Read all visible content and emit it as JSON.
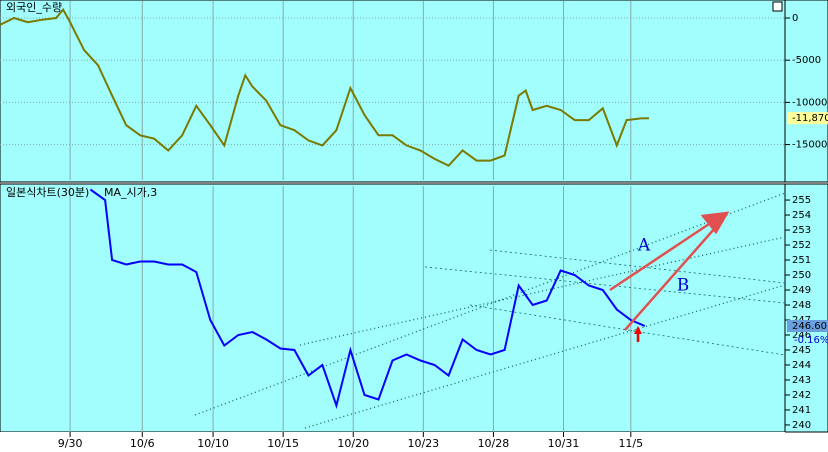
{
  "chart_data": [
    {
      "type": "line",
      "title": "외국인_수량",
      "color": "#7a7a00",
      "x": [
        0,
        2,
        4,
        6,
        8,
        9,
        10,
        12,
        14,
        15,
        16,
        18,
        20,
        22,
        24,
        26,
        28,
        30,
        32,
        34,
        35,
        36,
        38,
        40,
        42,
        44,
        46,
        48,
        50,
        52,
        54,
        56,
        58,
        60,
        62,
        64,
        66,
        68,
        70,
        72,
        74,
        75,
        76,
        78,
        80,
        82,
        84,
        86,
        88,
        89.4,
        91.4,
        92.6
      ],
      "values": [
        -800,
        0,
        -500,
        -200,
        0,
        1000,
        -500,
        -3800,
        -5600,
        -7400,
        -9200,
        -12700,
        -13900,
        -14300,
        -15700,
        -13900,
        -10400,
        -12700,
        -15100,
        -9200,
        -6800,
        -8100,
        -9800,
        -12700,
        -13300,
        -14500,
        -15100,
        -13300,
        -8300,
        -11500,
        -13900,
        -13900,
        -15100,
        -15700,
        -16700,
        -17500,
        -15700,
        -16900,
        -16900,
        -16300,
        -9200,
        -8600,
        -10900,
        -10400,
        -10900,
        -12100,
        -12100,
        -10700,
        -15100,
        -12100,
        -11900,
        -11870
      ],
      "ylim": [
        -19200,
        1900
      ],
      "yticks": [
        0,
        -5000,
        -10000,
        -15000
      ],
      "grid": true,
      "last_label": {
        "value": -11870,
        "label": "-11,870"
      }
    },
    {
      "type": "line",
      "title": "일본식차트(30분)",
      "legend": "MA_시가,3",
      "color": "#0000ff",
      "x": [
        12.9,
        15,
        16,
        18,
        20,
        22,
        24,
        26,
        28,
        30,
        32,
        34,
        36,
        38,
        40,
        42,
        44,
        46,
        48,
        50,
        52,
        54,
        56,
        58,
        60,
        62,
        64,
        66,
        68,
        70,
        72,
        74,
        76,
        78,
        80,
        82,
        84,
        86,
        88,
        90,
        92
      ],
      "values": [
        255.7,
        255,
        251,
        250.7,
        250.9,
        250.9,
        250.7,
        250.7,
        250.2,
        247,
        245.3,
        246,
        246.2,
        245.7,
        245.1,
        245,
        243.3,
        244,
        241.3,
        245,
        242,
        241.7,
        244.3,
        244.7,
        244.3,
        244,
        243.3,
        245.7,
        245,
        244.7,
        245,
        249.3,
        248,
        248.3,
        250.3,
        250,
        249.3,
        249,
        247.7,
        247,
        246.6
      ],
      "ylim": [
        239.53,
        255.87
      ],
      "yticks": [
        240,
        241,
        242,
        243,
        244,
        245,
        246,
        247,
        248,
        249,
        250,
        251,
        252,
        253,
        254,
        255
      ],
      "xlim": [
        0,
        112
      ],
      "xticks": [
        {
          "value": 10,
          "label": "9/30"
        },
        {
          "value": 20.3,
          "label": "10/6"
        },
        {
          "value": 30.4,
          "label": "10/10"
        },
        {
          "value": 40.4,
          "label": "10/15"
        },
        {
          "value": 50.4,
          "label": "10/20"
        },
        {
          "value": 60.4,
          "label": "10/23"
        },
        {
          "value": 70.4,
          "label": "10/28"
        },
        {
          "value": 80.4,
          "label": "10/31"
        },
        {
          "value": 90,
          "label": "11/5"
        }
      ],
      "last_label": {
        "value": 246.6,
        "label": "246.60"
      },
      "change_label": "-0.16%",
      "annotations": [
        "A",
        "B"
      ]
    }
  ]
}
